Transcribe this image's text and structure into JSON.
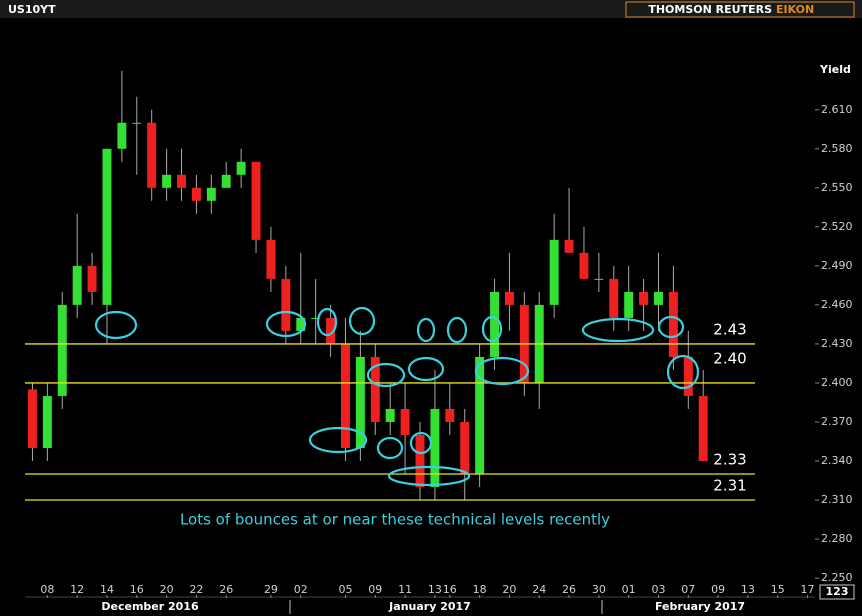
{
  "chart_data": {
    "type": "candlestick",
    "title": "US10YT",
    "brand": "THOMSON REUTERS",
    "brand_accent": "EIKON",
    "y_label": "Yield",
    "corner_label": "123",
    "annotation": "Lots of bounces at or near these technical levels recently",
    "months": [
      "December 2016",
      "January 2017",
      "February 2017"
    ],
    "categories": [
      null,
      "08",
      null,
      "12",
      null,
      "14",
      null,
      "16",
      null,
      "20",
      null,
      "22",
      null,
      "26",
      null,
      null,
      "29",
      null,
      "02",
      null,
      null,
      "05",
      null,
      "09",
      null,
      "11",
      null,
      "13",
      "16",
      null,
      "18",
      null,
      "20",
      null,
      "24",
      null,
      "26",
      null,
      "30",
      null,
      "01",
      null,
      "03",
      null,
      "07",
      null,
      "09",
      null,
      "13",
      null,
      "15",
      null,
      "17"
    ],
    "open": [
      2.395,
      2.35,
      2.39,
      2.46,
      2.49,
      2.46,
      2.58,
      2.6,
      2.6,
      2.55,
      2.56,
      2.55,
      2.54,
      2.55,
      2.56,
      2.57,
      2.51,
      2.48,
      2.44,
      2.45,
      2.45,
      2.43,
      2.35,
      2.42,
      2.37,
      2.38,
      2.36,
      2.32,
      2.38,
      2.37,
      2.33,
      2.42,
      2.47,
      2.46,
      2.4,
      2.46,
      2.51,
      2.5,
      2.48,
      2.48,
      2.45,
      2.47,
      2.46,
      2.47,
      2.42,
      2.39,
      null,
      null,
      null,
      null,
      null,
      null,
      null
    ],
    "high": [
      2.4,
      2.4,
      2.47,
      2.53,
      2.5,
      2.58,
      2.64,
      2.62,
      2.61,
      2.58,
      2.58,
      2.56,
      2.56,
      2.57,
      2.58,
      2.57,
      2.52,
      2.49,
      2.5,
      2.48,
      2.46,
      2.45,
      2.44,
      2.43,
      2.4,
      2.4,
      2.37,
      2.41,
      2.4,
      2.38,
      2.43,
      2.48,
      2.5,
      2.47,
      2.47,
      2.53,
      2.55,
      2.52,
      2.5,
      2.49,
      2.49,
      2.48,
      2.5,
      2.49,
      2.44,
      2.41,
      null,
      null,
      null,
      null,
      null,
      null,
      null
    ],
    "low": [
      2.34,
      2.34,
      2.38,
      2.45,
      2.46,
      2.43,
      2.57,
      2.56,
      2.54,
      2.54,
      2.54,
      2.53,
      2.53,
      2.55,
      2.55,
      2.5,
      2.47,
      2.43,
      2.43,
      2.43,
      2.42,
      2.34,
      2.34,
      2.36,
      2.36,
      2.33,
      2.31,
      2.31,
      2.36,
      2.31,
      2.32,
      2.41,
      2.44,
      2.39,
      2.38,
      2.45,
      2.5,
      2.48,
      2.47,
      2.44,
      2.44,
      2.44,
      2.44,
      2.41,
      2.38,
      2.34,
      null,
      null,
      null,
      null,
      null,
      null,
      null
    ],
    "close": [
      2.35,
      2.39,
      2.46,
      2.49,
      2.47,
      2.58,
      2.6,
      2.6,
      2.55,
      2.56,
      2.55,
      2.54,
      2.55,
      2.56,
      2.57,
      2.51,
      2.48,
      2.44,
      2.45,
      2.45,
      2.43,
      2.35,
      2.42,
      2.37,
      2.38,
      2.36,
      2.32,
      2.38,
      2.37,
      2.33,
      2.42,
      2.47,
      2.46,
      2.4,
      2.46,
      2.51,
      2.5,
      2.48,
      2.48,
      2.45,
      2.47,
      2.46,
      2.47,
      2.42,
      2.39,
      2.34,
      null,
      null,
      null,
      null,
      null,
      null,
      null
    ],
    "up_color": "#33e033",
    "down_color": "#ee2020",
    "ylim": [
      2.237,
      2.679
    ],
    "yticks": [
      {
        "value": 2.25,
        "label": "2.250"
      },
      {
        "value": 2.28,
        "label": "2.280"
      },
      {
        "value": 2.31,
        "label": "2.310"
      },
      {
        "value": 2.34,
        "label": "2.340"
      },
      {
        "value": 2.37,
        "label": "2.370"
      },
      {
        "value": 2.4,
        "label": "2.400"
      },
      {
        "value": 2.43,
        "label": "2.430"
      },
      {
        "value": 2.46,
        "label": "2.460"
      },
      {
        "value": 2.49,
        "label": "2.490"
      },
      {
        "value": 2.52,
        "label": "2.520"
      },
      {
        "value": 2.55,
        "label": "2.550"
      },
      {
        "value": 2.58,
        "label": "2.580"
      },
      {
        "value": 2.61,
        "label": "2.610"
      }
    ],
    "levels": [
      {
        "value": 2.43,
        "label": "2.43"
      },
      {
        "value": 2.4,
        "label": "2.40"
      },
      {
        "value": 2.33,
        "label": "2.33"
      },
      {
        "value": 2.31,
        "label": "2.31"
      }
    ],
    "level_color": "#e8e020"
  }
}
